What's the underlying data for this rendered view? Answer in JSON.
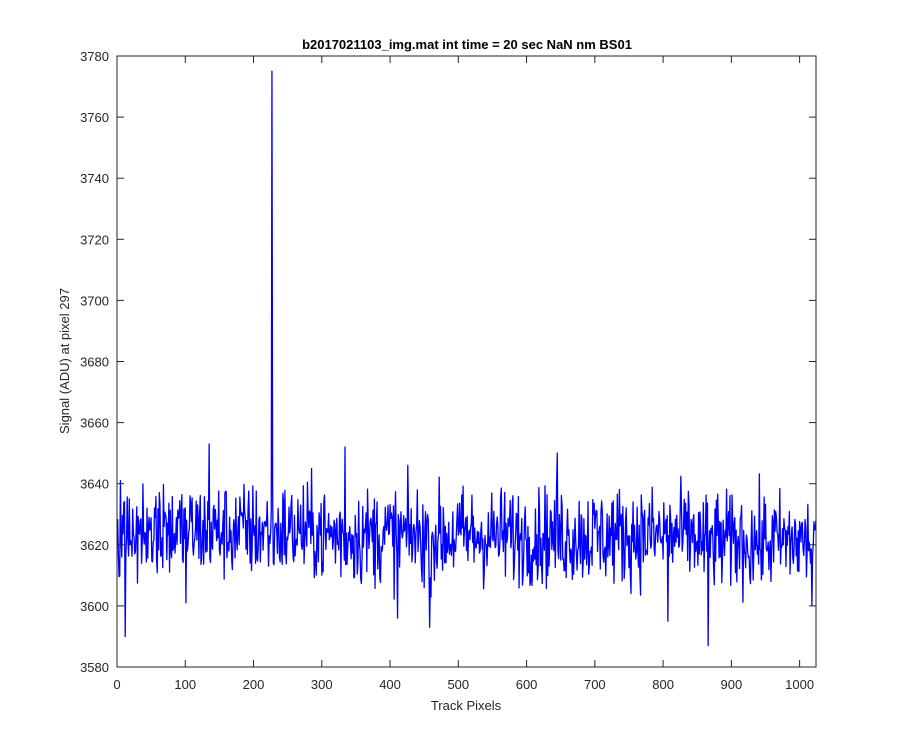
{
  "chart_data": {
    "type": "line",
    "title": "b2017021103_img.mat int time = 20 sec  NaN nm BS01",
    "xlabel": "Track Pixels",
    "ylabel": "Signal (ADU) at pixel 297",
    "xlim": [
      0,
      1024
    ],
    "ylim": [
      3580,
      3780
    ],
    "xticks": [
      0,
      100,
      200,
      300,
      400,
      500,
      600,
      700,
      800,
      900,
      1000
    ],
    "yticks": [
      3580,
      3600,
      3620,
      3640,
      3660,
      3680,
      3700,
      3720,
      3740,
      3760,
      3780
    ],
    "grid": false,
    "box": true,
    "series": [
      {
        "color": "#0000ff",
        "x_start": 1,
        "x_step": 1,
        "count": 1024,
        "baseline": 3623,
        "noise_amplitude": 8,
        "notable_points": [
          {
            "x": 5,
            "y": 3641
          },
          {
            "x": 12,
            "y": 3590
          },
          {
            "x": 135,
            "y": 3653
          },
          {
            "x": 101,
            "y": 3601
          },
          {
            "x": 227,
            "y": 3775
          },
          {
            "x": 334,
            "y": 3652
          },
          {
            "x": 411,
            "y": 3596
          },
          {
            "x": 458,
            "y": 3593
          },
          {
            "x": 645,
            "y": 3650
          },
          {
            "x": 807,
            "y": 3595
          },
          {
            "x": 866,
            "y": 3587
          },
          {
            "x": 1018,
            "y": 3600
          }
        ]
      }
    ]
  }
}
